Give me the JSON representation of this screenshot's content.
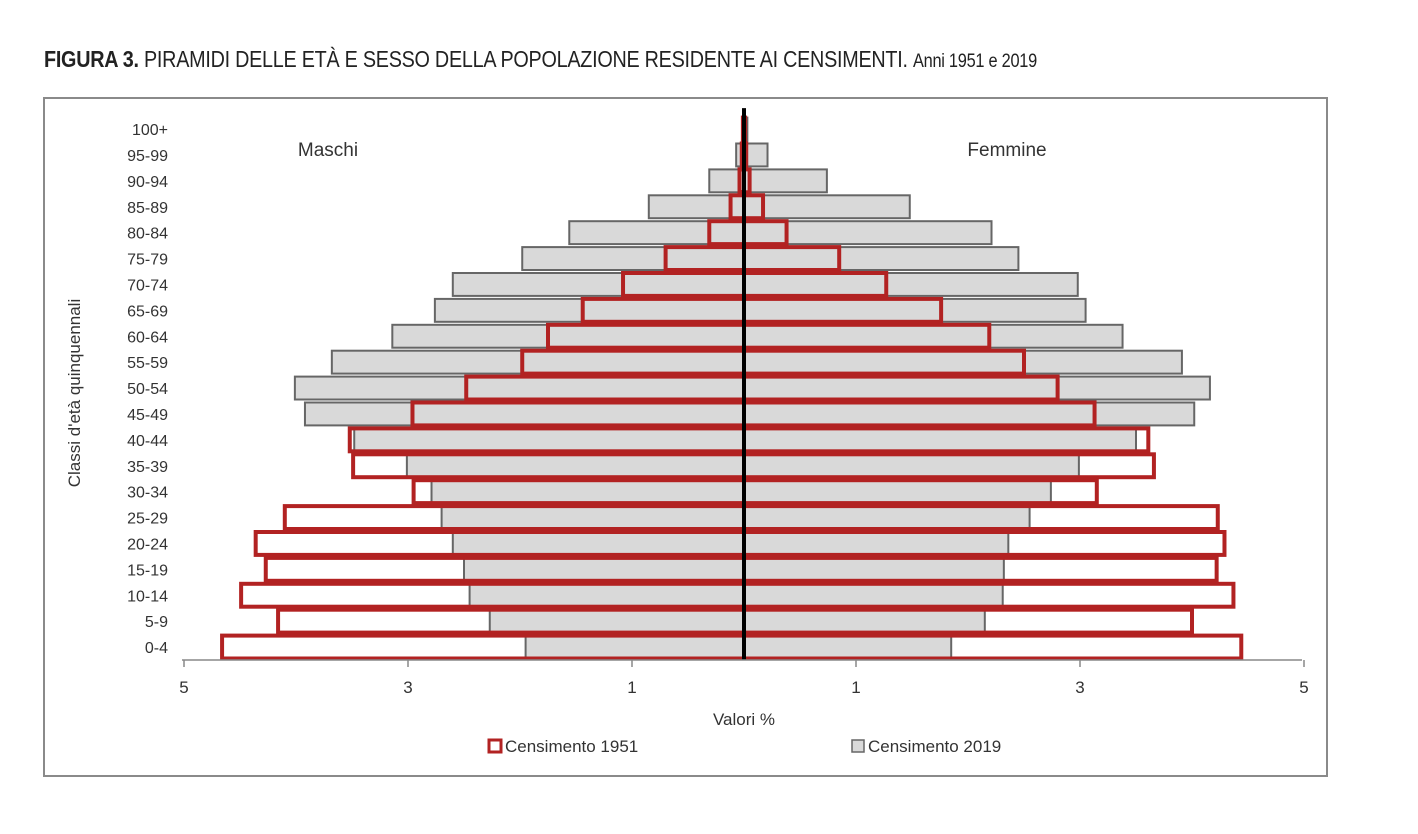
{
  "figure": {
    "label": "FIGURA 3.",
    "title": "PIRAMIDI DELLE ETÀ E SESSO DELLA POPOLAZIONE RESIDENTE AI CENSIMENTI.",
    "subtitle": "Anni 1951 e 2019"
  },
  "chart_data": {
    "type": "bar",
    "orientation": "horizontal-population-pyramid",
    "categories": [
      "0-4",
      "5-9",
      "10-14",
      "15-19",
      "20-24",
      "25-29",
      "30-34",
      "35-39",
      "40-44",
      "45-49",
      "50-54",
      "55-59",
      "60-64",
      "65-69",
      "70-74",
      "75-79",
      "80-84",
      "85-89",
      "90-94",
      "95-99",
      "100+"
    ],
    "side_labels": {
      "left": "Maschi",
      "right": "Femmine"
    },
    "xlabel": "Valori %",
    "ylabel": "Classi d'età quinquennali",
    "x_ticks": [
      "5",
      "3",
      "1",
      "1",
      "3",
      "5"
    ],
    "xlim": [
      -5,
      5
    ],
    "grid": false,
    "legend_position": "bottom",
    "series": [
      {
        "name": "Censimento 1951",
        "style": "outline",
        "color": "#b22222",
        "males": [
          4.66,
          4.16,
          4.49,
          4.27,
          4.36,
          4.1,
          2.95,
          3.49,
          3.52,
          2.96,
          2.48,
          1.98,
          1.75,
          1.44,
          1.08,
          0.7,
          0.31,
          0.12,
          0.04,
          0.02,
          0.01
        ],
        "females": [
          4.44,
          4.0,
          4.37,
          4.22,
          4.29,
          4.23,
          3.15,
          3.66,
          3.61,
          3.13,
          2.8,
          2.5,
          2.19,
          1.76,
          1.27,
          0.85,
          0.38,
          0.17,
          0.05,
          0.02,
          0.01
        ]
      },
      {
        "name": "Censimento 2019",
        "style": "filled",
        "color": "#d9d9d9",
        "stroke": "#666666",
        "males": [
          1.95,
          2.27,
          2.45,
          2.5,
          2.6,
          2.7,
          2.79,
          3.01,
          3.48,
          3.92,
          4.01,
          3.68,
          3.14,
          2.76,
          2.6,
          1.98,
          1.56,
          0.85,
          0.31,
          0.07,
          0.01
        ],
        "females": [
          1.85,
          2.15,
          2.31,
          2.32,
          2.36,
          2.55,
          2.74,
          2.99,
          3.5,
          4.02,
          4.16,
          3.91,
          3.38,
          3.05,
          2.98,
          2.45,
          2.21,
          1.48,
          0.74,
          0.21,
          0.03
        ]
      }
    ]
  }
}
